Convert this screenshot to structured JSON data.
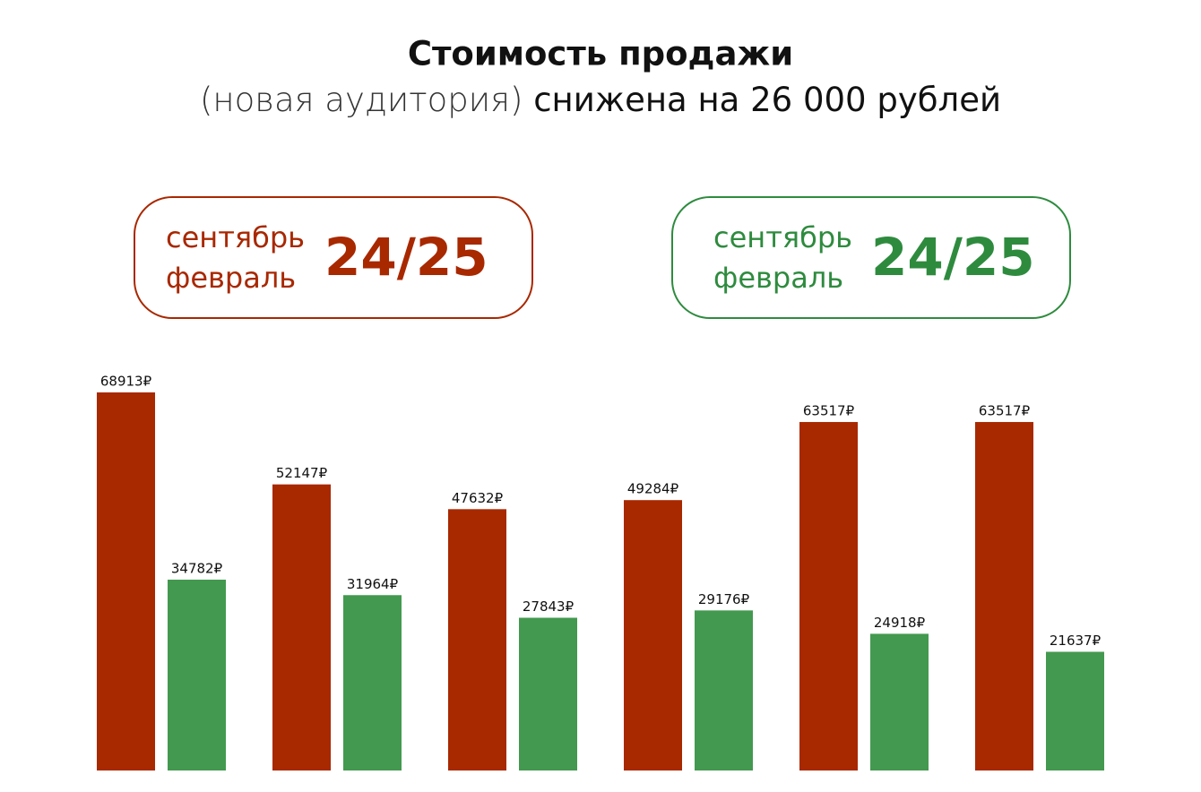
{
  "chart_data": {
    "type": "bar",
    "title": "Стоимость продажи",
    "subtitle": [
      "(новая аудитория)",
      "снижена на 26 000 рублей"
    ],
    "legend": [
      {
        "lines": [
          "сентябрь",
          "февраль"
        ],
        "period": "24/25",
        "color": "#a82800"
      },
      {
        "lines": [
          "сентябрь",
          "февраль"
        ],
        "period": "24/25",
        "color": "#2e8b3e"
      }
    ],
    "categories": [
      null,
      null,
      null,
      null,
      null,
      null
    ],
    "series": [
      {
        "color": "#a82800",
        "values": [
          68913,
          52147,
          47632,
          49284,
          63517,
          63517
        ],
        "value_labels": [
          "68913₽",
          "52147₽",
          "47632₽",
          "49284₽",
          "63517₽",
          "63517₽"
        ]
      },
      {
        "color": "#43994f",
        "values": [
          34782,
          31964,
          27843,
          29176,
          24918,
          21637
        ],
        "value_labels": [
          "34782₽",
          "31964₽",
          "27843₽",
          "29176₽",
          "24918₽",
          "21637₽"
        ]
      }
    ]
  }
}
